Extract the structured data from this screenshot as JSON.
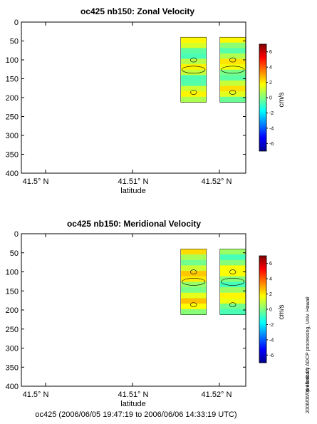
{
  "chart_data": [
    {
      "type": "heatmap",
      "title": "oc425 nb150: Zonal Velocity",
      "xlabel": "latitude",
      "ylabel": "",
      "x_ticks": [
        "41.5° N",
        "41.51° N",
        "41.52° N"
      ],
      "x_tick_values": [
        41.5,
        41.51,
        41.52
      ],
      "xlim": [
        41.4985,
        41.5243
      ],
      "ylim": [
        400,
        0
      ],
      "y_ticks": [
        0,
        50,
        100,
        150,
        200,
        250,
        300,
        350,
        400
      ],
      "colorbar": {
        "label": "cm/s",
        "range": [
          -7,
          7
        ],
        "ticks": [
          6,
          4,
          2,
          0,
          -2,
          -4,
          -6
        ]
      },
      "profiles": [
        {
          "lat": 41.5183,
          "depth_range": [
            40,
            212
          ],
          "mean_cms": 0.5
        },
        {
          "lat": 41.5228,
          "depth_range": [
            40,
            212
          ],
          "mean_cms": 0.8
        }
      ]
    },
    {
      "type": "heatmap",
      "title": "oc425 nb150: Meridional Velocity",
      "xlabel": "latitude",
      "ylabel": "",
      "x_ticks": [
        "41.5° N",
        "41.51° N",
        "41.52° N"
      ],
      "x_tick_values": [
        41.5,
        41.51,
        41.52
      ],
      "xlim": [
        41.4985,
        41.5243
      ],
      "ylim": [
        400,
        0
      ],
      "y_ticks": [
        0,
        50,
        100,
        150,
        200,
        250,
        300,
        350,
        400
      ],
      "colorbar": {
        "label": "cm/s",
        "range": [
          -7,
          7
        ],
        "ticks": [
          6,
          4,
          2,
          0,
          -2,
          -4,
          -6
        ]
      },
      "profiles": [
        {
          "lat": 41.5183,
          "depth_range": [
            40,
            212
          ],
          "mean_cms": 1.2
        },
        {
          "lat": 41.5228,
          "depth_range": [
            40,
            212
          ],
          "mean_cms": 0.6
        }
      ]
    }
  ],
  "footer": {
    "time_range": "oc425 (2006/06/05 19:47:19 to 2006/06/06 14:33:19 UTC)",
    "credit": "preliminary ADCP processing,  Univ. Hawaii",
    "timestamp": "2006/06/06 15:41:01"
  }
}
